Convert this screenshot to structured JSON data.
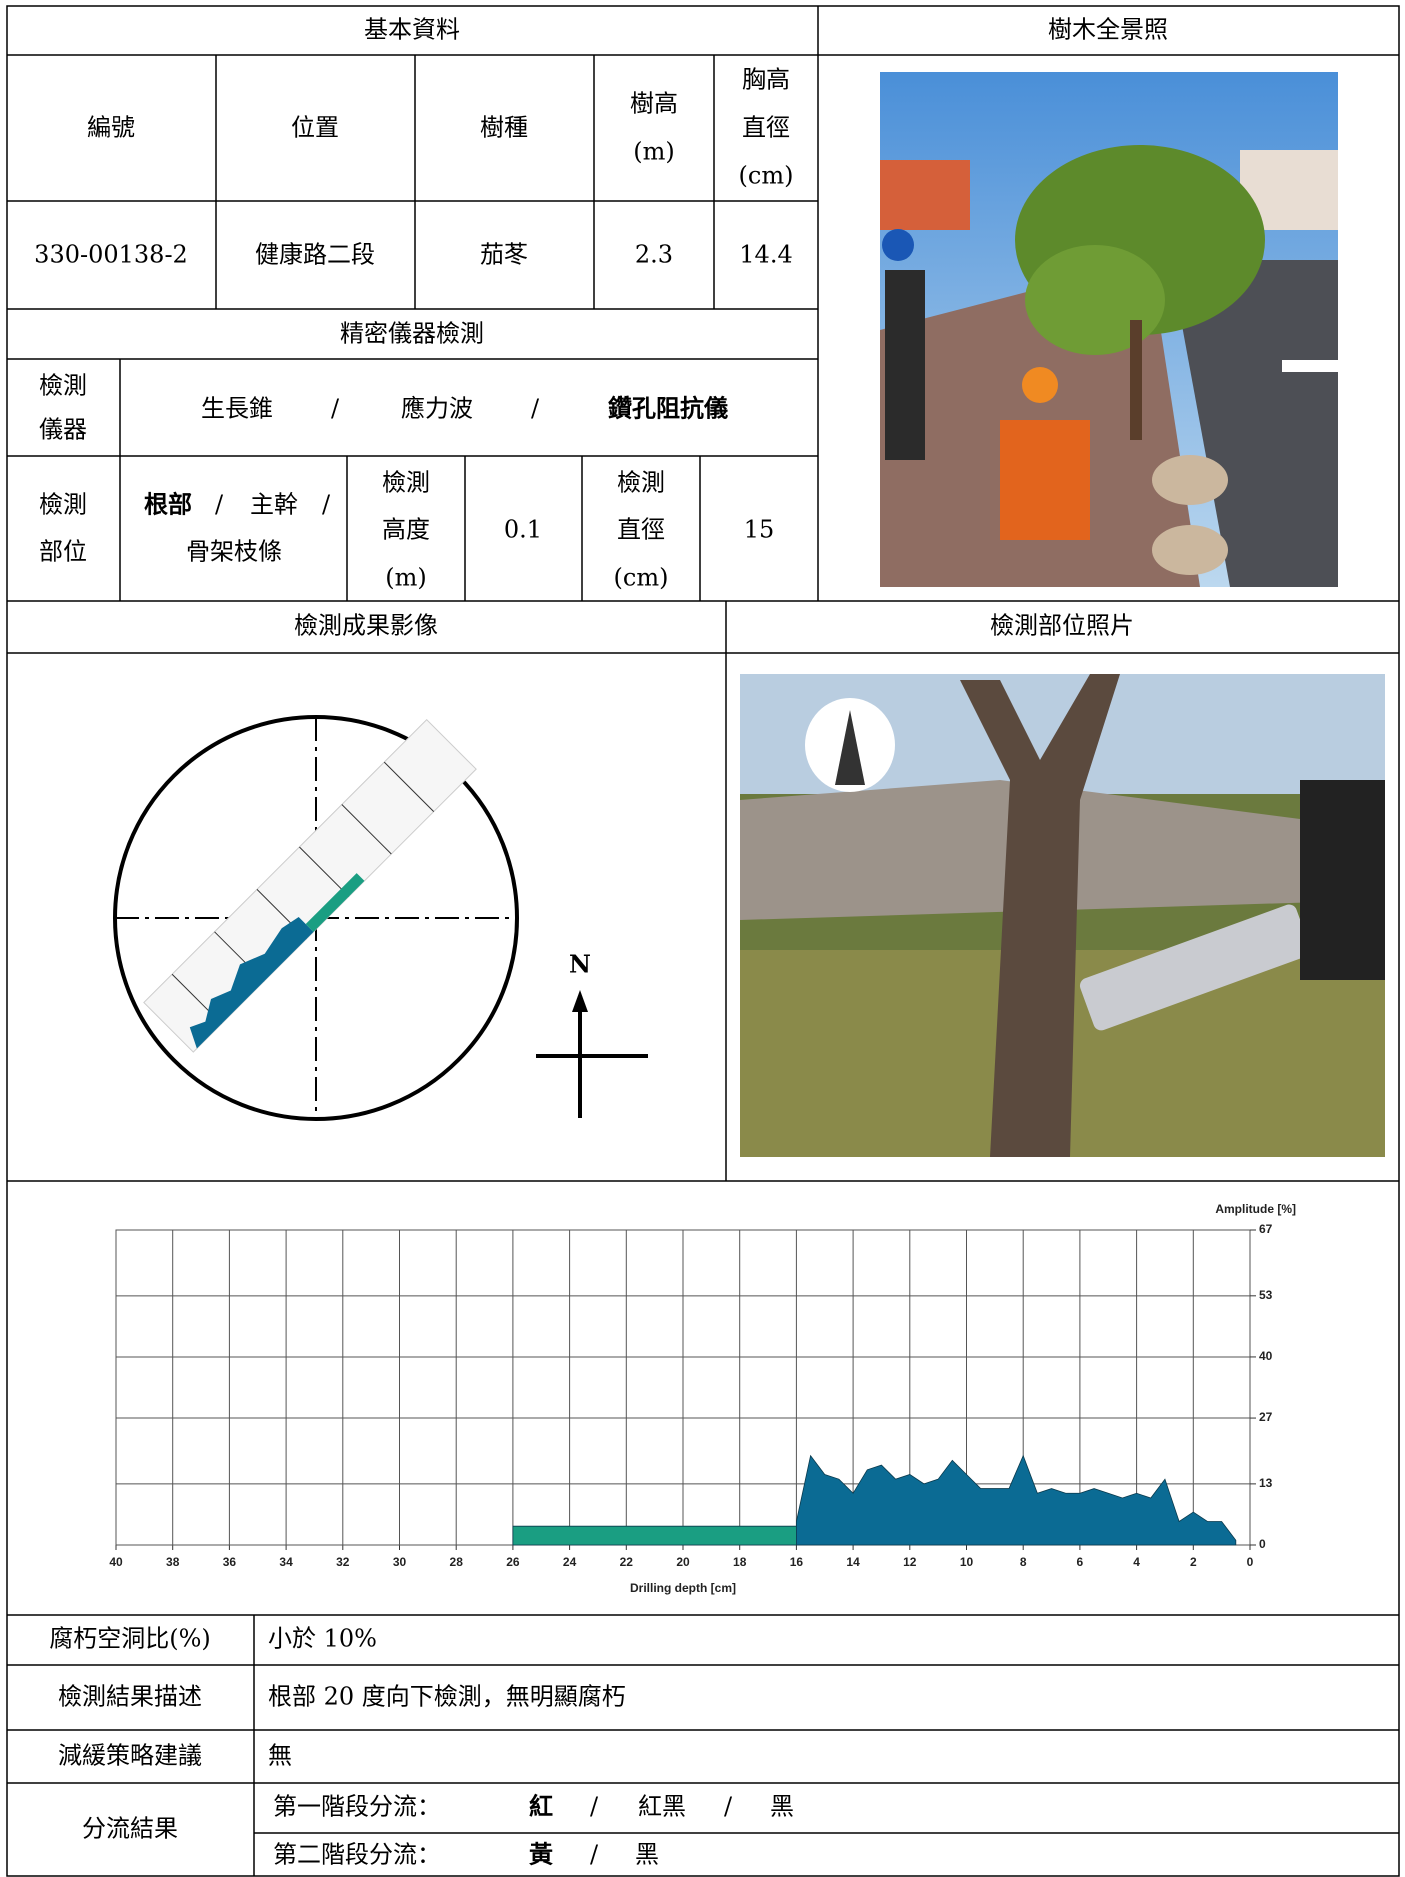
{
  "basic": {
    "title": "基本資料",
    "headers": [
      [
        "編號"
      ],
      [
        "位置"
      ],
      [
        "樹種"
      ],
      [
        "樹高",
        "(m)"
      ],
      [
        "胸高",
        "直徑",
        "(cm)"
      ]
    ],
    "values": [
      "330-00138-2",
      "健康路二段",
      "茄苳",
      "2.3",
      "14.4"
    ]
  },
  "photo_title": "樹木全景照",
  "inspection": {
    "title": "精密儀器檢測",
    "instrument_label": [
      "檢測",
      "儀器"
    ],
    "instruments": [
      "生長錐",
      "/",
      "應力波",
      "/",
      "鑽孔阻抗儀"
    ],
    "part_label": [
      "檢測",
      "部位"
    ],
    "parts": [
      [
        "根部",
        "/",
        "主幹",
        "/"
      ],
      [
        "骨架枝條"
      ]
    ],
    "height_label": [
      "檢測",
      "高度",
      "(m)"
    ],
    "height": "0.1",
    "diameter_label": [
      "檢測",
      "直徑",
      "(cm)"
    ],
    "diameter": "15"
  },
  "results_title": "檢測成果影像",
  "site_photo_title": "檢測部位照片",
  "north": "N",
  "chart_data": {
    "type": "area",
    "x_label": "Drilling depth [cm]",
    "y_label": "Amplitude [%]",
    "xlim": [
      40,
      0
    ],
    "ylim": [
      0,
      67
    ],
    "xticks": [
      40,
      38,
      36,
      34,
      32,
      30,
      28,
      26,
      24,
      22,
      20,
      18,
      16,
      14,
      12,
      10,
      8,
      6,
      4,
      2,
      0
    ],
    "yticks": [
      0,
      13,
      27,
      40,
      53,
      67
    ],
    "grid": true,
    "series": [
      {
        "color": "#1a9e82",
        "x": [
          26,
          24,
          22,
          20,
          18,
          16
        ],
        "values": [
          4,
          4,
          4,
          4,
          4,
          4
        ]
      },
      {
        "color": "#0b6b94",
        "x": [
          16,
          15.5,
          15,
          14.5,
          14,
          13.5,
          13,
          12.5,
          12,
          11.5,
          11,
          10.5,
          10,
          9.5,
          9,
          8.5,
          8,
          7.5,
          7,
          6.5,
          6,
          5.5,
          5,
          4.5,
          4,
          3.5,
          3,
          2.5,
          2,
          1.5,
          1,
          0.5
        ],
        "values": [
          5,
          19,
          15,
          14,
          11,
          16,
          17,
          14,
          15,
          13,
          14,
          18,
          15,
          12,
          12,
          12,
          19,
          11,
          12,
          11,
          11,
          12,
          11,
          10,
          11,
          10,
          14,
          5,
          7,
          5,
          5,
          1
        ]
      }
    ]
  },
  "summary": [
    {
      "label": "腐朽空洞比(%)",
      "value": "小於 10%"
    },
    {
      "label": "檢測結果描述",
      "value": "根部 20 度向下檢測，無明顯腐朽"
    },
    {
      "label": "減緩策略建議",
      "value": "無"
    }
  ],
  "classification": {
    "label": "分流結果",
    "stages": [
      {
        "label": "第一階段分流：",
        "options": [
          "紅",
          "/",
          "紅黑",
          "/",
          "黑"
        ]
      },
      {
        "label": "第二階段分流：",
        "options": [
          "黃",
          "/",
          "黑"
        ]
      }
    ]
  }
}
